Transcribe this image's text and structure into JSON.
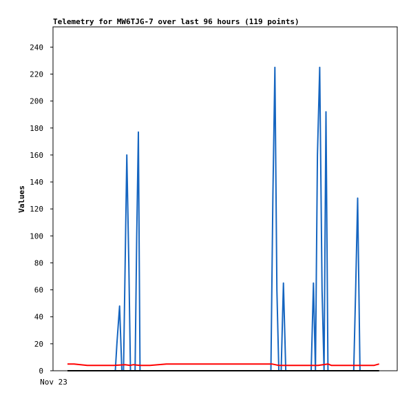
{
  "chart_data": {
    "type": "line",
    "title": "Telemetry for MW6TJG-7 over last 96 hours (119 points)",
    "xlabel": "",
    "ylabel": "Values",
    "x_tick_labels": [
      "Nov 23"
    ],
    "ylim": [
      0,
      255
    ],
    "y_ticks": [
      0,
      20,
      40,
      60,
      80,
      100,
      120,
      140,
      160,
      180,
      200,
      220,
      240
    ],
    "grid": false,
    "legend": "none",
    "xlim": [
      0,
      1
    ],
    "series": [
      {
        "color": "#1565c0",
        "points": [
          [
            0.0,
            0
          ],
          [
            0.145,
            0
          ],
          [
            0.15,
            20
          ],
          [
            0.158,
            48
          ],
          [
            0.165,
            0
          ],
          [
            0.17,
            0
          ],
          [
            0.175,
            80
          ],
          [
            0.18,
            160
          ],
          [
            0.186,
            80
          ],
          [
            0.191,
            0
          ],
          [
            0.205,
            0
          ],
          [
            0.21,
            100
          ],
          [
            0.215,
            177
          ],
          [
            0.22,
            0
          ],
          [
            0.617,
            0
          ],
          [
            0.623,
            130
          ],
          [
            0.629,
            225
          ],
          [
            0.635,
            60
          ],
          [
            0.641,
            0
          ],
          [
            0.648,
            0
          ],
          [
            0.655,
            65
          ],
          [
            0.662,
            0
          ],
          [
            0.739,
            0
          ],
          [
            0.746,
            65
          ],
          [
            0.752,
            0
          ],
          [
            0.758,
            160
          ],
          [
            0.765,
            225
          ],
          [
            0.772,
            60
          ],
          [
            0.778,
            0
          ],
          [
            0.784,
            192
          ],
          [
            0.79,
            0
          ],
          [
            0.868,
            0
          ],
          [
            0.874,
            60
          ],
          [
            0.88,
            128
          ],
          [
            0.887,
            0
          ],
          [
            0.9,
            0
          ]
        ]
      },
      {
        "color": "#ff0000",
        "points": [
          [
            0.0,
            5
          ],
          [
            0.02,
            5
          ],
          [
            0.04,
            4.5
          ],
          [
            0.06,
            4
          ],
          [
            0.14,
            4
          ],
          [
            0.175,
            4.5
          ],
          [
            0.19,
            4
          ],
          [
            0.2,
            4.5
          ],
          [
            0.22,
            4
          ],
          [
            0.25,
            4
          ],
          [
            0.3,
            5
          ],
          [
            0.62,
            5
          ],
          [
            0.64,
            4
          ],
          [
            0.76,
            4
          ],
          [
            0.79,
            5
          ],
          [
            0.8,
            4
          ],
          [
            0.93,
            4
          ],
          [
            0.945,
            5
          ]
        ]
      },
      {
        "color": "#000000",
        "points": [
          [
            0.0,
            0
          ],
          [
            0.945,
            0
          ]
        ]
      }
    ]
  }
}
